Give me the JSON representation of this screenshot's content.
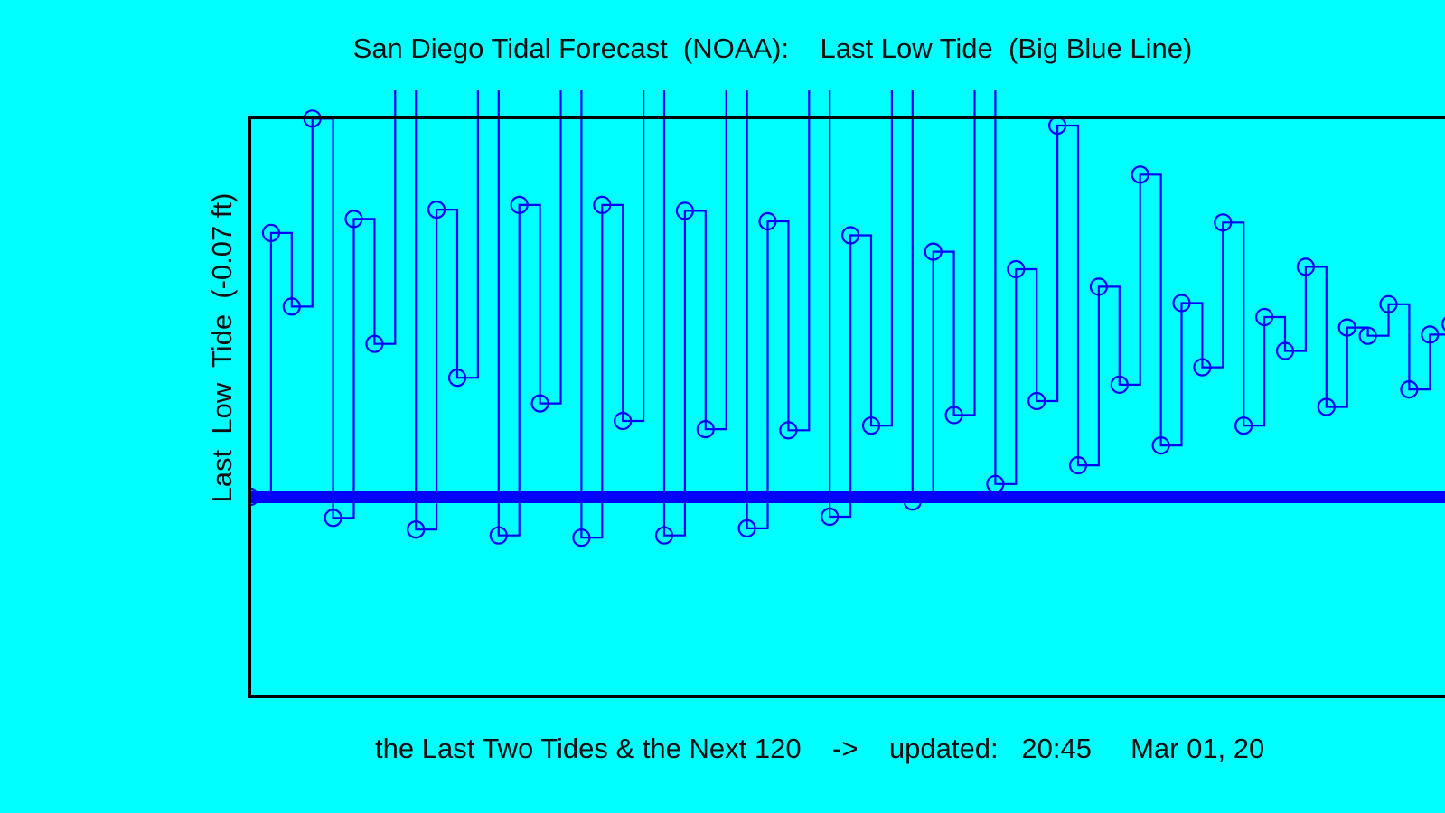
{
  "chart_data": {
    "type": "line",
    "title": "San Diego Tidal Forecast  (NOAA):    Last Low Tide  (Big Blue Line)",
    "ylabel": "Last  Low  Tide  (-0.07 ft)",
    "xlabel": "the Last Two Tides & the Next 120    ->    updated:   20:45     Mar 01, 20",
    "baseline": -0.07,
    "ylim": [
      -1.78,
      3.18
    ],
    "x": [
      1,
      2,
      3,
      4,
      5,
      6,
      7,
      8,
      9,
      10,
      11,
      12,
      13,
      14,
      15,
      16,
      17,
      18,
      19,
      20,
      21,
      22,
      23,
      24,
      25,
      26,
      27,
      28,
      29,
      30,
      31,
      32,
      33,
      34,
      35,
      36,
      37,
      38,
      39,
      40,
      41,
      42,
      43,
      44,
      45,
      46,
      47,
      48,
      49,
      50,
      51,
      52,
      53,
      54,
      55,
      56,
      57,
      58,
      59,
      60,
      61,
      62,
      63,
      64,
      65,
      66,
      67,
      68,
      69,
      70,
      71,
      72,
      73,
      74,
      75,
      76,
      77,
      78,
      79,
      80,
      81,
      82,
      83,
      84,
      85,
      86,
      87,
      88,
      89,
      90,
      91,
      92,
      93,
      94,
      95,
      96,
      97,
      98,
      99,
      100,
      101,
      102,
      103,
      104,
      105,
      106,
      107,
      108,
      109,
      110,
      111,
      112,
      113,
      114,
      115,
      116,
      117,
      118,
      119,
      120,
      121,
      122
    ],
    "values": [
      -0.07,
      2.19,
      1.56,
      3.17,
      -0.25,
      2.31,
      1.24,
      3.74,
      -0.35,
      2.39,
      0.95,
      4.05,
      -0.4,
      2.43,
      0.73,
      4.27,
      -0.42,
      2.43,
      0.58,
      4.35,
      -0.4,
      2.38,
      0.51,
      4.31,
      -0.34,
      2.29,
      0.5,
      4.14,
      -0.24,
      2.17,
      0.54,
      3.86,
      -0.11,
      2.03,
      0.63,
      3.51,
      0.04,
      1.88,
      0.75,
      3.11,
      0.2,
      1.73,
      0.89,
      2.69,
      0.37,
      1.59,
      1.04,
      2.28,
      0.54,
      1.47,
      1.18,
      1.9,
      0.7,
      1.38,
      1.31,
      1.58,
      0.85,
      1.32,
      1.41,
      1.34,
      0.98,
      1.3,
      1.48,
      1.19,
      1.08,
      1.32,
      1.51,
      1.15,
      1.15,
      1.38,
      1.5,
      1.22,
      1.19,
      1.48,
      1.45,
      1.39,
      1.2,
      1.6,
      1.37,
      1.65,
      1.18,
      1.74,
      1.26,
      1.98,
      1.13,
      1.89,
      1.13,
      2.35,
      1.06,
      2.04,
      0.99,
      2.72,
      0.97,
      2.18,
      0.86,
      3.05,
      0.88,
      2.29,
      0.74,
      3.31,
      0.79,
      2.36,
      0.64,
      3.47,
      0.7,
      2.38,
      0.58,
      3.51,
      0.62,
      2.35,
      0.56,
      3.43,
      0.56,
      2.27,
      0.58,
      3.24,
      0.52,
      2.15,
      0.64,
      2.97,
      0.5,
      2.01
    ]
  },
  "colors": {
    "background": "#00FFFF",
    "series": "#0000FF",
    "frame": "#000000"
  }
}
